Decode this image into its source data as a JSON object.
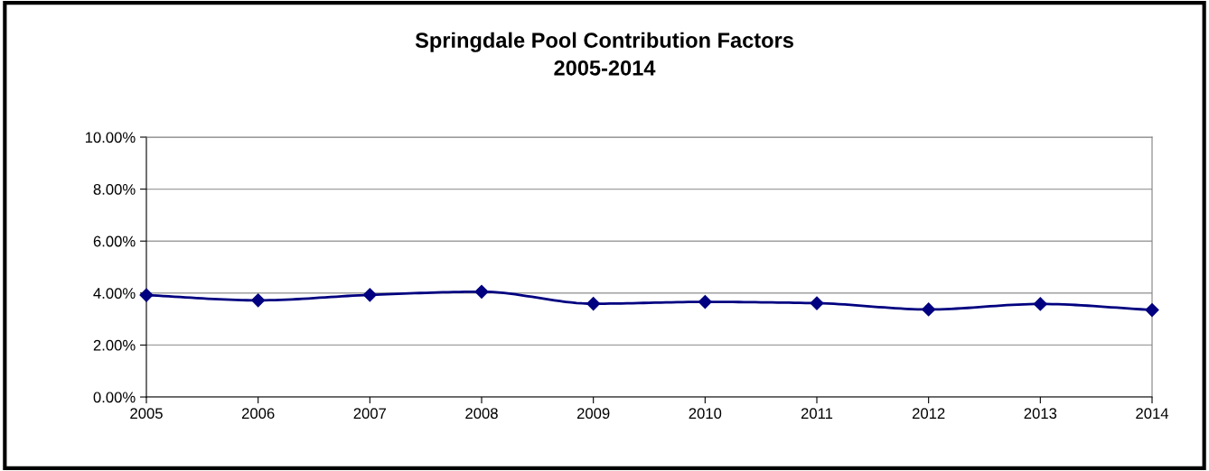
{
  "chart_data": {
    "type": "line",
    "title": "Springdale Pool Contribution Factors\n2005-2014",
    "x": [
      2005,
      2006,
      2007,
      2008,
      2009,
      2010,
      2011,
      2012,
      2013,
      2014
    ],
    "series": [
      {
        "color": "#000080",
        "values": [
          3.92,
          3.72,
          3.93,
          4.05,
          3.59,
          3.66,
          3.61,
          3.37,
          3.58,
          3.35
        ]
      }
    ],
    "xlim": [
      2005,
      2014
    ],
    "xticks": [
      2005,
      2006,
      2007,
      2008,
      2009,
      2010,
      2011,
      2012,
      2013,
      2014
    ],
    "ylim": [
      0,
      10
    ],
    "yticks": [
      {
        "value": 0,
        "label": "0.00%"
      },
      {
        "value": 2,
        "label": "2.00%"
      },
      {
        "value": 4,
        "label": "4.00%"
      },
      {
        "value": 6,
        "label": "6.00%"
      },
      {
        "value": 8,
        "label": "8.00%"
      },
      {
        "value": 10,
        "label": "10.00%"
      }
    ],
    "grid": "y",
    "marker": "diamond",
    "line_style": "solid",
    "legend": false
  }
}
